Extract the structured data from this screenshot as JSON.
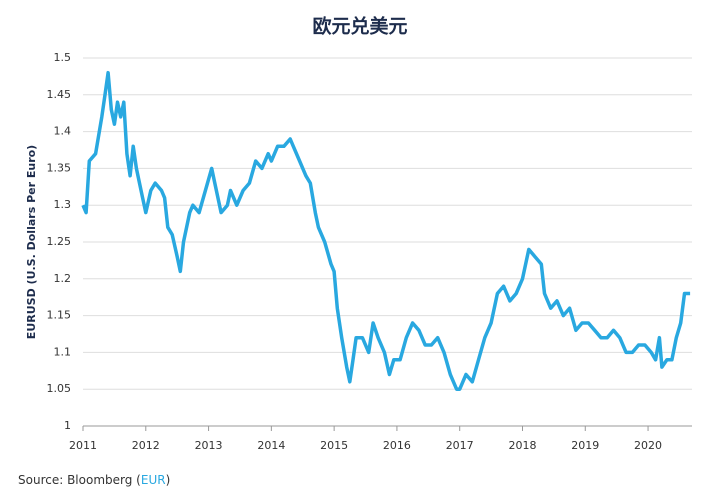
{
  "chart_data": {
    "type": "line",
    "title": "欧元兑美元",
    "y_label": "EURUSD (U.S. Dollars Per Euro)",
    "source_prefix": "Source: Bloomberg (",
    "source_link": "EUR",
    "source_suffix": ")",
    "xlim": [
      2011,
      2020.7
    ],
    "xticks": [
      2011,
      2012,
      2013,
      2014,
      2015,
      2016,
      2017,
      2018,
      2019,
      2020
    ],
    "ylim": [
      1,
      1.5
    ],
    "yticks": [
      1,
      1.05,
      1.1,
      1.15,
      1.2,
      1.25,
      1.3,
      1.35,
      1.4,
      1.45,
      1.5
    ],
    "grid": true,
    "series": [
      {
        "name": "EURUSD",
        "color": "#29a8e0",
        "x": [
          2011.0,
          2011.05,
          2011.1,
          2011.2,
          2011.3,
          2011.35,
          2011.4,
          2011.45,
          2011.5,
          2011.55,
          2011.6,
          2011.65,
          2011.7,
          2011.75,
          2011.8,
          2011.85,
          2011.9,
          2011.95,
          2012.0,
          2012.08,
          2012.15,
          2012.25,
          2012.3,
          2012.35,
          2012.42,
          2012.5,
          2012.55,
          2012.6,
          2012.7,
          2012.75,
          2012.85,
          2012.95,
          2013.05,
          2013.1,
          2013.2,
          2013.3,
          2013.35,
          2013.45,
          2013.55,
          2013.65,
          2013.75,
          2013.85,
          2013.95,
          2014.0,
          2014.1,
          2014.2,
          2014.3,
          2014.35,
          2014.45,
          2014.55,
          2014.62,
          2014.7,
          2014.75,
          2014.85,
          2014.95,
          2015.0,
          2015.05,
          2015.12,
          2015.2,
          2015.25,
          2015.3,
          2015.35,
          2015.45,
          2015.55,
          2015.62,
          2015.7,
          2015.8,
          2015.88,
          2015.95,
          2016.05,
          2016.15,
          2016.25,
          2016.35,
          2016.45,
          2016.55,
          2016.65,
          2016.75,
          2016.85,
          2016.95,
          2017.0,
          2017.1,
          2017.2,
          2017.3,
          2017.4,
          2017.5,
          2017.6,
          2017.7,
          2017.8,
          2017.9,
          2018.0,
          2018.1,
          2018.2,
          2018.3,
          2018.35,
          2018.45,
          2018.55,
          2018.65,
          2018.75,
          2018.85,
          2018.95,
          2019.05,
          2019.15,
          2019.25,
          2019.35,
          2019.45,
          2019.55,
          2019.65,
          2019.75,
          2019.85,
          2019.95,
          2020.05,
          2020.12,
          2020.18,
          2020.22,
          2020.3,
          2020.38,
          2020.45,
          2020.52,
          2020.58,
          2020.63,
          2020.67
        ],
        "values": [
          1.3,
          1.29,
          1.36,
          1.37,
          1.42,
          1.45,
          1.48,
          1.43,
          1.41,
          1.44,
          1.42,
          1.44,
          1.37,
          1.34,
          1.38,
          1.35,
          1.33,
          1.31,
          1.29,
          1.32,
          1.33,
          1.32,
          1.31,
          1.27,
          1.26,
          1.23,
          1.21,
          1.25,
          1.29,
          1.3,
          1.29,
          1.32,
          1.35,
          1.33,
          1.29,
          1.3,
          1.32,
          1.3,
          1.32,
          1.33,
          1.36,
          1.35,
          1.37,
          1.36,
          1.38,
          1.38,
          1.39,
          1.38,
          1.36,
          1.34,
          1.33,
          1.29,
          1.27,
          1.25,
          1.22,
          1.21,
          1.16,
          1.12,
          1.08,
          1.06,
          1.09,
          1.12,
          1.12,
          1.1,
          1.14,
          1.12,
          1.1,
          1.07,
          1.09,
          1.09,
          1.12,
          1.14,
          1.13,
          1.11,
          1.11,
          1.12,
          1.1,
          1.07,
          1.05,
          1.05,
          1.07,
          1.06,
          1.09,
          1.12,
          1.14,
          1.18,
          1.19,
          1.17,
          1.18,
          1.2,
          1.24,
          1.23,
          1.22,
          1.18,
          1.16,
          1.17,
          1.15,
          1.16,
          1.13,
          1.14,
          1.14,
          1.13,
          1.12,
          1.12,
          1.13,
          1.12,
          1.1,
          1.1,
          1.11,
          1.11,
          1.1,
          1.09,
          1.12,
          1.08,
          1.09,
          1.09,
          1.12,
          1.14,
          1.18,
          1.18,
          1.18
        ]
      }
    ]
  }
}
